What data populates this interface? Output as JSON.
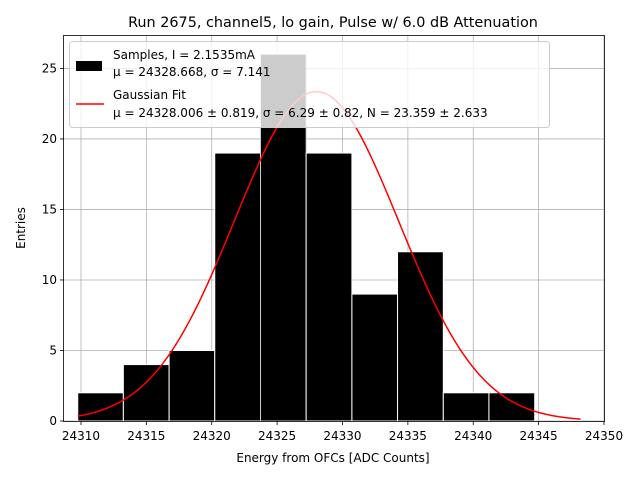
{
  "chart_data": {
    "type": "bar",
    "title": "Run 2675, channel5, lo gain, Pulse w/ 6.0 dB Attenuation",
    "xlabel": "Energy from OFCs [ADC Counts]",
    "ylabel": "Entries",
    "xlim": [
      24308.7,
      24350.0
    ],
    "ylim": [
      0,
      27.3
    ],
    "xticks": [
      24310,
      24315,
      24320,
      24325,
      24330,
      24335,
      24340,
      24345,
      24350
    ],
    "yticks": [
      0,
      5,
      10,
      15,
      20,
      25
    ],
    "grid": true,
    "legend_position": "top-left",
    "bins": [
      {
        "x0": 24309.75,
        "x1": 24313.24,
        "count": 2
      },
      {
        "x0": 24313.24,
        "x1": 24316.74,
        "count": 4
      },
      {
        "x0": 24316.74,
        "x1": 24320.23,
        "count": 5
      },
      {
        "x0": 24320.23,
        "x1": 24323.73,
        "count": 19
      },
      {
        "x0": 24323.73,
        "x1": 24327.22,
        "count": 26
      },
      {
        "x0": 24327.22,
        "x1": 24330.72,
        "count": 19
      },
      {
        "x0": 24330.72,
        "x1": 24334.21,
        "count": 9
      },
      {
        "x0": 24334.21,
        "x1": 24337.71,
        "count": 12
      },
      {
        "x0": 24337.71,
        "x1": 24341.2,
        "count": 2
      },
      {
        "x0": 24341.2,
        "x1": 24344.7,
        "count": 2
      }
    ],
    "fit": {
      "mu": 24328.006,
      "sigma": 6.29,
      "N": 23.359,
      "x_range": [
        24309.75,
        24348.2
      ]
    },
    "series": [
      {
        "name": "Samples, I = 2.1535mA",
        "name_line2": "μ = 24328.668, σ = 7.141",
        "color": "#000000"
      },
      {
        "name": "Gaussian Fit",
        "name_line2": "μ = 24328.006 ± 0.819, σ = 6.29 ± 0.82, N = 23.359 ± 2.633",
        "color": "#ff0000"
      }
    ]
  }
}
